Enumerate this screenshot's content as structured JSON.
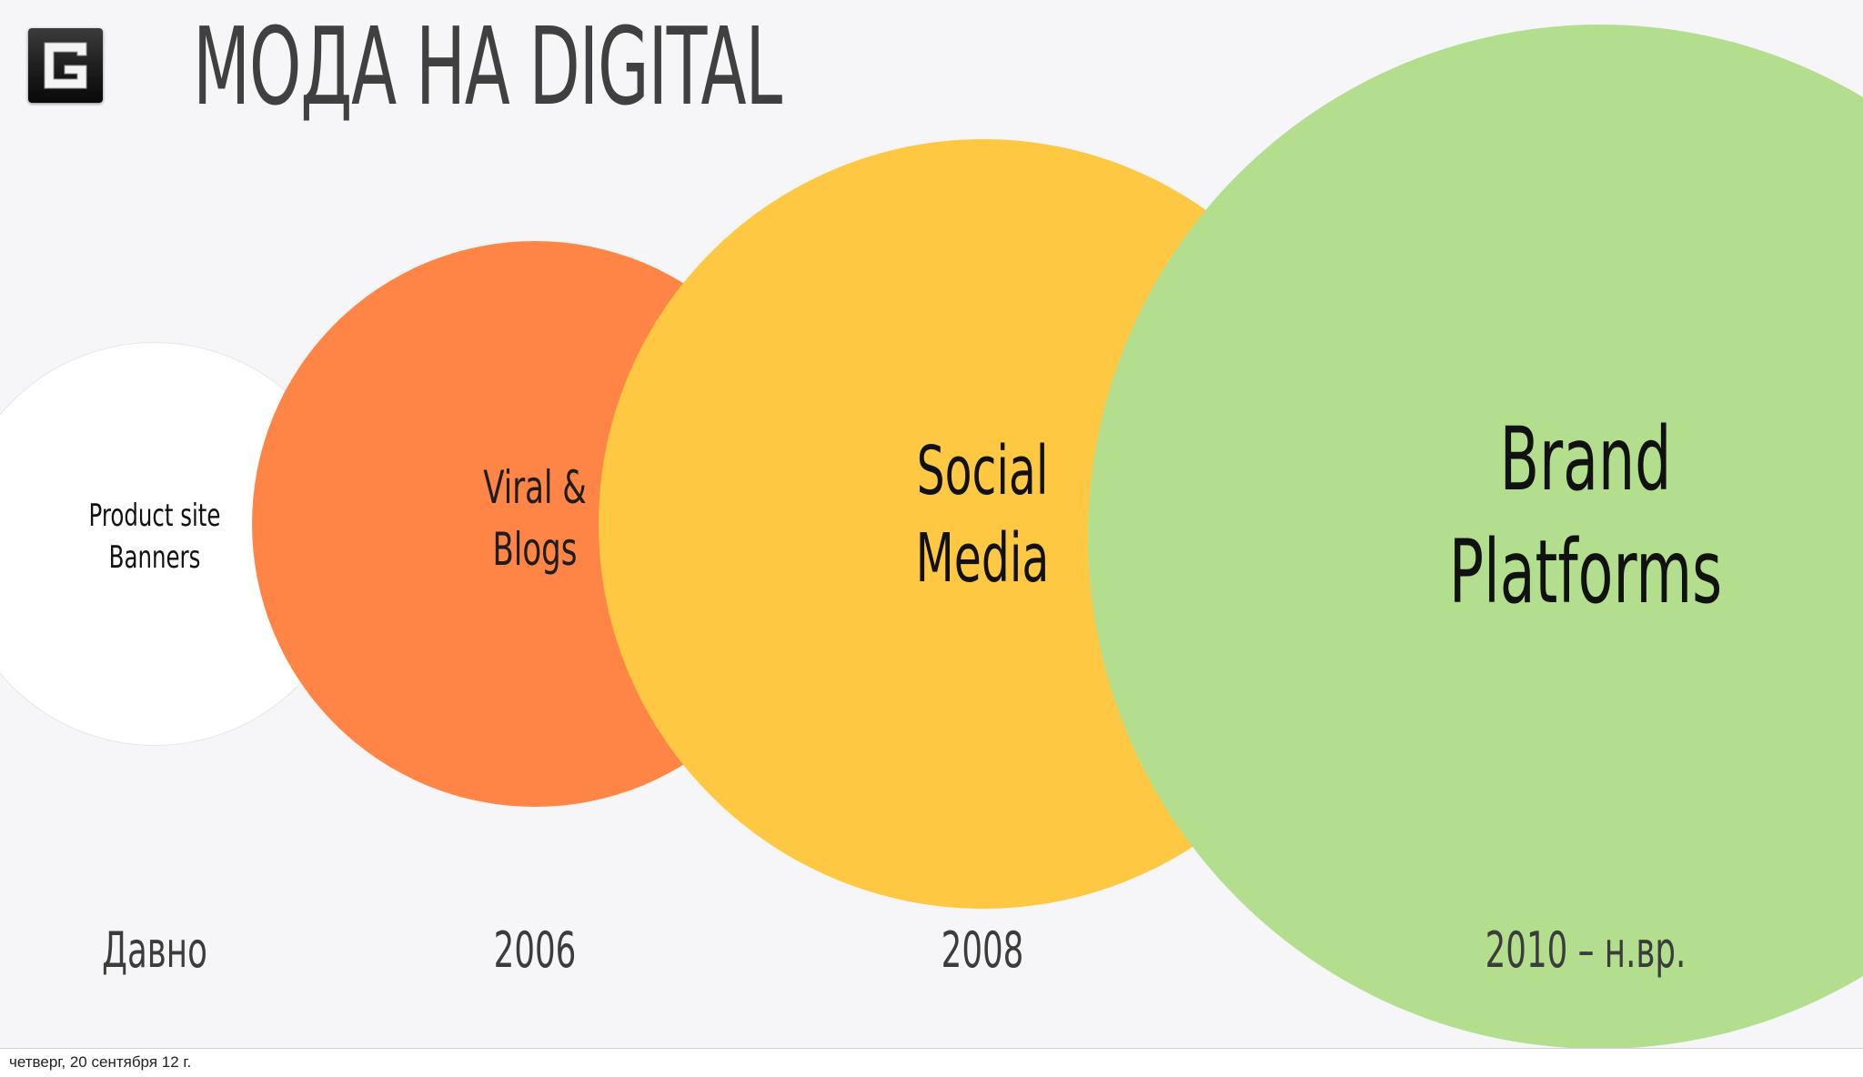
{
  "slide": {
    "title": "МОДА НА DIGITAL",
    "logo_icon": "g-square-logo-icon"
  },
  "stages": [
    {
      "label": "Product site\nBanners",
      "year": "Давно",
      "color": "#ffffff"
    },
    {
      "label": "Viral &\nBlogs",
      "year": "2006",
      "color": "#ff8547"
    },
    {
      "label": "Social\nMedia",
      "year": "2008",
      "color": "#fec843"
    },
    {
      "label": "Brand\nPlatforms",
      "year": "2010 – н.вр.",
      "color": "#b3de8e"
    }
  ],
  "footer": {
    "date": "четверг, 20 сентября 12 г."
  }
}
